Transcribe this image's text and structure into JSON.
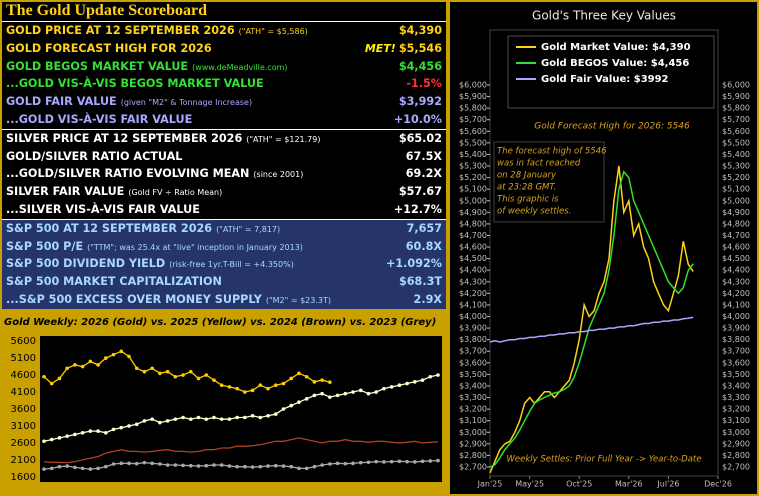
{
  "scoreboard": {
    "title": "The Gold Update Scoreboard",
    "sections": [
      {
        "bg": "#000000",
        "rows": [
          {
            "label": "GOLD PRICE AT 12 SEPTEMBER 2026",
            "note": "(\"ATH\" = $5,586)",
            "value": "$4,390",
            "color": "#ffd21a",
            "value_color": "#ffd21a"
          },
          {
            "label": "GOLD FORECAST HIGH FOR 2026",
            "flag": "MET!",
            "value": "$5,546",
            "color": "#ffd21a",
            "value_color": "#ffd21a"
          },
          {
            "label": "GOLD BEGOS MARKET VALUE",
            "note": "(www.deMeadville.com)",
            "value": "$4,456",
            "color": "#34e034",
            "value_color": "#34e034"
          },
          {
            "label": "...GOLD VIS-À-VIS BEGOS MARKET VALUE",
            "value": "-1.5%",
            "color": "#34e034",
            "value_color": "#ff3030"
          },
          {
            "label": "GOLD FAIR VALUE",
            "note": "(given \"M2\" & Tonnage Increase)",
            "value": "$3,992",
            "color": "#a8a8ff",
            "value_color": "#a8a8ff"
          },
          {
            "label": "...GOLD VIS-À-VIS FAIR VALUE",
            "value": "+10.0%",
            "color": "#a8a8ff",
            "value_color": "#a8a8ff"
          }
        ]
      },
      {
        "bg": "#000000",
        "rows": [
          {
            "label": "SILVER PRICE AT 12 SEPTEMBER 2026",
            "note": "(\"ATH\" = $121.79)",
            "value": "$65.02",
            "color": "#ffffff",
            "value_color": "#ffffff"
          },
          {
            "label": "GOLD/SILVER RATIO ACTUAL",
            "value": "67.5X",
            "color": "#ffffff",
            "value_color": "#ffffff"
          },
          {
            "label": "...GOLD/SILVER RATIO EVOLVING MEAN",
            "note": "(since 2001)",
            "value": "69.2X",
            "color": "#ffffff",
            "value_color": "#ffffff"
          },
          {
            "label": "SILVER FAIR VALUE",
            "note": "(Gold FV ÷ Ratio Mean)",
            "value": "$57.67",
            "color": "#ffffff",
            "value_color": "#ffffff"
          },
          {
            "label": "...SILVER VIS-À-VIS FAIR VALUE",
            "value": "+12.7%",
            "color": "#ffffff",
            "value_color": "#ffffff"
          }
        ]
      },
      {
        "bg": "#25356b",
        "rows": [
          {
            "label": "S&P 500 AT 12 SEPTEMBER 2026",
            "note": "(\"ATH\" = 7,817)",
            "value": "7,657",
            "color": "#a8d8ff",
            "value_color": "#a8d8ff"
          },
          {
            "label": "S&P 500 P/E",
            "note": "(\"TTM\"; was 25.4x at \"live\" inception in January 2013)",
            "value": "60.8X",
            "color": "#a8d8ff",
            "value_color": "#a8d8ff"
          },
          {
            "label": "S&P 500 DIVIDEND YIELD",
            "note": "(risk-free 1yr.T-Bill = +4.350%)",
            "value": "+1.092%",
            "color": "#a8d8ff",
            "value_color": "#a8d8ff"
          },
          {
            "label": "S&P 500 MARKET CAPITALIZATION",
            "value": "$68.3T",
            "color": "#a8d8ff",
            "value_color": "#a8d8ff"
          },
          {
            "label": "...S&P 500 EXCESS OVER MONEY SUPPLY",
            "note": "(\"M2\" = $23.3T)",
            "value": "2.9X",
            "color": "#a8d8ff",
            "value_color": "#a8d8ff"
          }
        ]
      }
    ]
  },
  "chart_data": [
    {
      "type": "line",
      "title": "Gold Weekly:  2026 (Gold) vs. 2025 (Yellow) vs. 2024 (Brown) vs. 2023 (Grey)",
      "ylim": [
        1450,
        5750
      ],
      "yticks": [
        1600,
        2100,
        2600,
        3100,
        3600,
        4100,
        4600,
        5100,
        5600
      ],
      "weeks": 52,
      "series": [
        {
          "color": "#ffcc00",
          "markers": true,
          "values": [
            4550,
            4350,
            4500,
            4800,
            4900,
            4850,
            5000,
            4900,
            5100,
            5200,
            5300,
            5150,
            4800,
            4700,
            4800,
            4650,
            4700,
            4550,
            4600,
            4700,
            4500,
            4600,
            4450,
            4300,
            4250,
            4200,
            4100,
            4150,
            4300,
            4200,
            4300,
            4350,
            4500,
            4650,
            4550,
            4400,
            4450,
            4390
          ]
        },
        {
          "color": "#ffffd0",
          "markers": true,
          "values": [
            2650,
            2700,
            2750,
            2800,
            2850,
            2900,
            2950,
            2950,
            2900,
            3000,
            3050,
            3100,
            3150,
            3250,
            3300,
            3200,
            3250,
            3300,
            3350,
            3300,
            3350,
            3300,
            3350,
            3300,
            3300,
            3350,
            3350,
            3400,
            3350,
            3400,
            3450,
            3600,
            3700,
            3800,
            3900,
            4000,
            4050,
            3950,
            4000,
            4050,
            4100,
            4150,
            4050,
            4100,
            4200,
            4250,
            4300,
            4350,
            4400,
            4450,
            4550,
            4600
          ]
        },
        {
          "color": "#b04020",
          "markers": false,
          "values": [
            2050,
            2030,
            2030,
            2020,
            2050,
            2100,
            2150,
            2200,
            2300,
            2350,
            2400,
            2350,
            2350,
            2330,
            2350,
            2380,
            2400,
            2350,
            2350,
            2330,
            2350,
            2400,
            2400,
            2450,
            2450,
            2500,
            2500,
            2520,
            2550,
            2600,
            2650,
            2650,
            2700,
            2750,
            2700,
            2650,
            2600,
            2650,
            2650,
            2700,
            2650,
            2650,
            2620,
            2650,
            2650,
            2620,
            2600,
            2620,
            2650,
            2600,
            2620,
            2630
          ]
        },
        {
          "color": "#a8a8a8",
          "markers": true,
          "values": [
            1830,
            1850,
            1900,
            1920,
            1880,
            1850,
            1830,
            1850,
            1900,
            1980,
            2000,
            2000,
            1990,
            2020,
            2000,
            1980,
            1950,
            1950,
            1940,
            1930,
            1920,
            1930,
            1950,
            1950,
            1920,
            1900,
            1900,
            1890,
            1900,
            1920,
            1930,
            1920,
            1900,
            1850,
            1850,
            1900,
            1950,
            1980,
            2000,
            1990,
            2000,
            2020,
            2030,
            2050,
            2040,
            2050,
            2060,
            2050,
            2040,
            2060,
            2070,
            2080
          ]
        }
      ]
    },
    {
      "type": "line",
      "title": "Gold's Three Key Values",
      "x": [
        0,
        0.5,
        1,
        1.5,
        2,
        2.5,
        3,
        3.5,
        4,
        4.5,
        5,
        5.5,
        6,
        6.5,
        7,
        7.5,
        8,
        8.5,
        9,
        9.5,
        10,
        10.5,
        11,
        11.5,
        12,
        12.5,
        13,
        13.5,
        14,
        14.5,
        15,
        15.5,
        16,
        16.5,
        17,
        17.5,
        18,
        18.5,
        19,
        19.5,
        20,
        20.5
      ],
      "xlim": [
        0,
        23
      ],
      "xticks": [
        {
          "value": 0,
          "label": "Jan'25"
        },
        {
          "value": 4,
          "label": "May'25"
        },
        {
          "value": 9,
          "label": "Oct'25"
        },
        {
          "value": 14,
          "label": "Mar'26"
        },
        {
          "value": 18,
          "label": "Jul'26"
        },
        {
          "value": 23,
          "label": "Dec'26"
        }
      ],
      "ylim": [
        2700,
        6000
      ],
      "yticks": [
        {
          "value": 2700,
          "label": "$2,700"
        },
        {
          "value": 2800,
          "label": "$2,800"
        },
        {
          "value": 2900,
          "label": "$2,900"
        },
        {
          "value": 3000,
          "label": "$3,000"
        },
        {
          "value": 3100,
          "label": "$3,100"
        },
        {
          "value": 3200,
          "label": "$3,200"
        },
        {
          "value": 3300,
          "label": "$3,300"
        },
        {
          "value": 3400,
          "label": "$3,400"
        },
        {
          "value": 3500,
          "label": "$3,500"
        },
        {
          "value": 3600,
          "label": "$3,600"
        },
        {
          "value": 3700,
          "label": "$3,700"
        },
        {
          "value": 3800,
          "label": "$3,800"
        },
        {
          "value": 3900,
          "label": "$3,900"
        },
        {
          "value": 4000,
          "label": "$4,000"
        },
        {
          "value": 4100,
          "label": "$4,100"
        },
        {
          "value": 4200,
          "label": "$4,200"
        },
        {
          "value": 4300,
          "label": "$4,300"
        },
        {
          "value": 4400,
          "label": "$4,400"
        },
        {
          "value": 4500,
          "label": "$4,500"
        },
        {
          "value": 4600,
          "label": "$4,600"
        },
        {
          "value": 4700,
          "label": "$4,700"
        },
        {
          "value": 4800,
          "label": "$4,800"
        },
        {
          "value": 4900,
          "label": "$4,900"
        },
        {
          "value": 5000,
          "label": "$5,000"
        },
        {
          "value": 5100,
          "label": "$5,100"
        },
        {
          "value": 5200,
          "label": "$5,200"
        },
        {
          "value": 5300,
          "label": "$5,300"
        },
        {
          "value": 5400,
          "label": "$5,400"
        },
        {
          "value": 5500,
          "label": "$5,500"
        },
        {
          "value": 5600,
          "label": "$5,600"
        },
        {
          "value": 5700,
          "label": "$5,700"
        },
        {
          "value": 5800,
          "label": "$5,800"
        },
        {
          "value": 5900,
          "label": "$5,900"
        },
        {
          "value": 6000,
          "label": "$6,000"
        }
      ],
      "series": [
        {
          "name": "Gold Market Value:  $4,390",
          "color": "#ffd21a",
          "values": [
            2650,
            2750,
            2850,
            2900,
            2920,
            3000,
            3100,
            3250,
            3300,
            3250,
            3300,
            3350,
            3350,
            3300,
            3350,
            3400,
            3450,
            3600,
            3800,
            4100,
            4000,
            4050,
            4200,
            4300,
            4500,
            5000,
            5300,
            4900,
            5000,
            4700,
            4800,
            4600,
            4500,
            4300,
            4200,
            4100,
            4050,
            4200,
            4350,
            4650,
            4450,
            4390
          ]
        },
        {
          "name": "Gold BEGOS Value:  $4,456",
          "color": "#30e030",
          "values": [
            2700,
            2720,
            2780,
            2850,
            2900,
            2950,
            3020,
            3100,
            3180,
            3250,
            3280,
            3300,
            3320,
            3340,
            3350,
            3370,
            3400,
            3480,
            3600,
            3750,
            3900,
            4000,
            4100,
            4200,
            4400,
            4700,
            5100,
            5250,
            5200,
            5000,
            4900,
            4800,
            4700,
            4600,
            4500,
            4400,
            4300,
            4250,
            4200,
            4250,
            4400,
            4456
          ]
        },
        {
          "name": "Gold Fair Value:  $3992",
          "color": "#a8a8ff",
          "values": [
            3780,
            3790,
            3780,
            3790,
            3800,
            3800,
            3810,
            3810,
            3820,
            3820,
            3830,
            3830,
            3840,
            3840,
            3850,
            3850,
            3860,
            3860,
            3870,
            3870,
            3880,
            3880,
            3890,
            3890,
            3900,
            3900,
            3910,
            3910,
            3920,
            3920,
            3930,
            3940,
            3940,
            3950,
            3950,
            3960,
            3960,
            3970,
            3970,
            3980,
            3985,
            3992
          ]
        }
      ],
      "annotations": {
        "forecast": "Gold Forecast High for 2026:  5546",
        "note_lines": [
          "The forecast high of 5546",
          "was in fact reached",
          "on 28 January",
          "at 23:28 GMT.",
          "This graphic is",
          "of weekly settles."
        ],
        "footer": "Weekly Settles:  Prior Full Year -> Year-to-Date"
      }
    }
  ]
}
